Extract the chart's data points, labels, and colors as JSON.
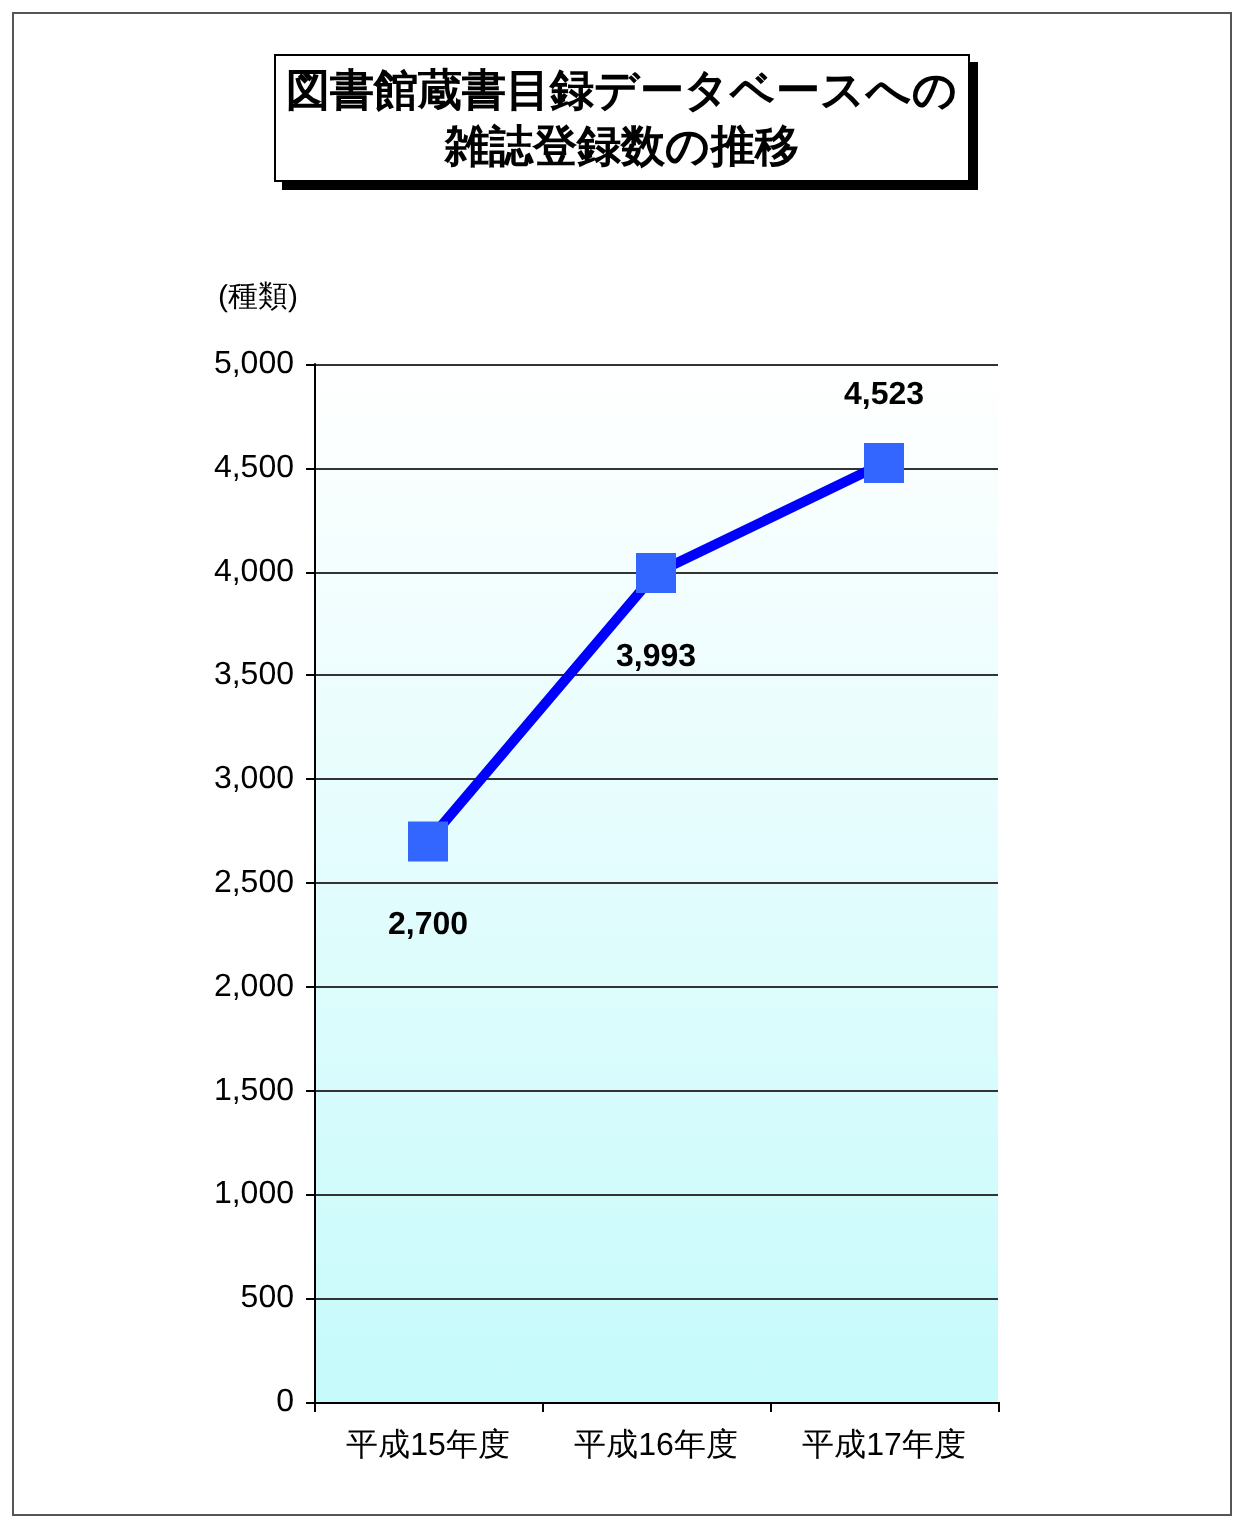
{
  "chart_data": {
    "type": "line",
    "title": "図書館蔵書目録データベースへの雑誌登録数の推移",
    "ylabel": "(種類)",
    "categories": [
      "平成15年度",
      "平成16年度",
      "平成17年度"
    ],
    "series": [
      {
        "color": "#0000ff",
        "values": [
          2700,
          3993,
          4523
        ],
        "value_labels": [
          "2,700",
          "3,993",
          "4,523"
        ]
      }
    ],
    "ylim": [
      0,
      5000
    ],
    "yticks": [
      {
        "value": 0,
        "label": "0"
      },
      {
        "value": 500,
        "label": "500"
      },
      {
        "value": 1000,
        "label": "1,000"
      },
      {
        "value": 1500,
        "label": "1,500"
      },
      {
        "value": 2000,
        "label": "2,000"
      },
      {
        "value": 2500,
        "label": "2,500"
      },
      {
        "value": 3000,
        "label": "3,000"
      },
      {
        "value": 3500,
        "label": "3,500"
      },
      {
        "value": 4000,
        "label": "4,000"
      },
      {
        "value": 4500,
        "label": "4,500"
      },
      {
        "value": 5000,
        "label": "5,000"
      }
    ],
    "grid": "y",
    "marker": "square",
    "line_style": "solid"
  }
}
